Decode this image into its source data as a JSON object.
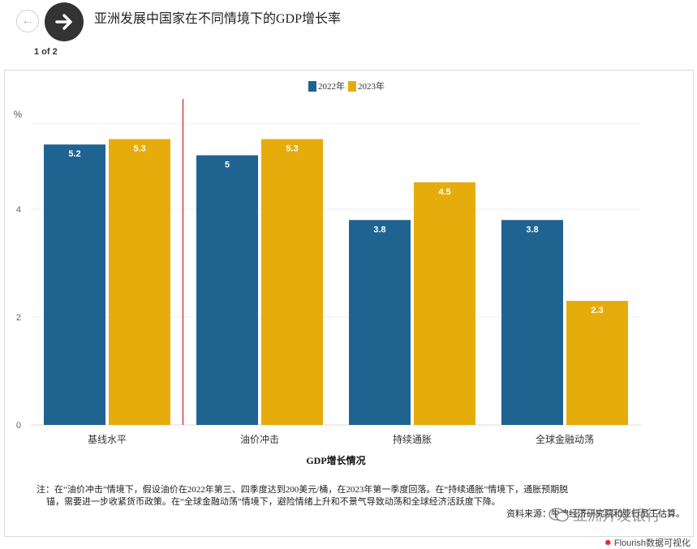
{
  "header": {
    "title": "亚洲发展中国家在不同情境下的GDP增长率",
    "counter": "1 of 2",
    "prev_icon": "arrow-left-icon",
    "next_icon": "arrow-right-icon"
  },
  "chart_data": {
    "type": "bar",
    "xlabel": "GDP增长情况",
    "ylabel": "%",
    "ylim": [
      0,
      5.6
    ],
    "yticks": [
      0,
      2,
      4
    ],
    "grid": true,
    "legend_position": "top-center",
    "categories": [
      "基线水平",
      "油价冲击",
      "持续通胀",
      "全球金融动荡"
    ],
    "series": [
      {
        "name": "2022年",
        "color": "#1f6391",
        "values": [
          5.2,
          5,
          3.8,
          3.8
        ],
        "labels": [
          "5.2",
          "5",
          "3.8",
          "3.8"
        ]
      },
      {
        "name": "2023年",
        "color": "#e6ac0c",
        "values": [
          5.3,
          5.3,
          4.5,
          2.3
        ],
        "labels": [
          "5.3",
          "5.3",
          "4.5",
          "2.3"
        ]
      }
    ],
    "divider_color": "#cc1f1f"
  },
  "note": {
    "line1": "注：在“油价冲击”情境下，假设油价在2022年第三、四季度达到200美元/桶，在2023年第一季度回落。在“持续通胀”情境下，通胀预期脱",
    "line2": "锚，需要进一步收紧货币政策。在“全球金融动荡”情境下，避险情绪上升和不景气导致动荡和全球经济活跃度下降。",
    "source": "资料来源：牛津经济研究院和亚行员工估算。"
  },
  "watermark": {
    "icon": "wechat-icon",
    "text": "亚洲开发银行"
  },
  "credit": {
    "icon": "flourish-icon",
    "text": "Flourish数据可视化"
  }
}
